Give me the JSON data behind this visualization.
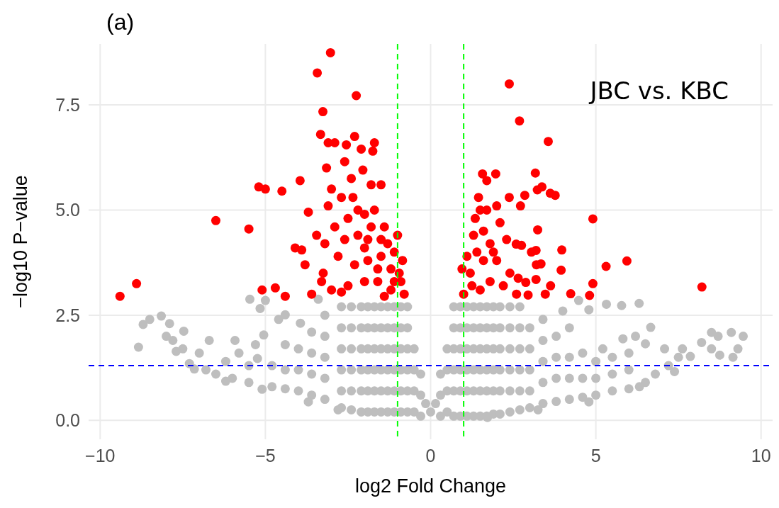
{
  "chart_data": {
    "type": "scatter",
    "title": "(a)",
    "xlabel": "log2 Fold Change",
    "ylabel": "−log10 P−value",
    "annotations": [
      "JBC vs. KBC"
    ],
    "xlim": [
      -10.35,
      10.35
    ],
    "ylim": [
      -0.45,
      8.95
    ],
    "xticks": [
      {
        "value": -10,
        "label": "−10"
      },
      {
        "value": -5,
        "label": "−5"
      },
      0,
      5,
      10
    ],
    "yticks": [
      {
        "value": 0,
        "label": "0.0"
      },
      2.5,
      {
        "value": 5,
        "label": "5.0"
      },
      7.5
    ],
    "grid": true,
    "marker": "circle",
    "ref_lines": [
      {
        "axis": "y",
        "value": 1.3,
        "color": "#0000ff",
        "line_style": "dashed"
      },
      {
        "axis": "x",
        "value": -1,
        "color": "#00ff00",
        "line_style": "dashed"
      },
      {
        "axis": "x",
        "value": 1,
        "color": "#00ff00",
        "line_style": "dashed"
      }
    ],
    "series": [
      {
        "color": "#bebebe",
        "x": [
          -0.5,
          -0.5,
          -0.5,
          -0.5,
          -0.7,
          -0.7,
          -0.7,
          -0.7,
          -0.7,
          -0.7,
          -0.9,
          -0.9,
          -0.9,
          -0.9,
          -0.9,
          -0.9,
          -1.1,
          -1.1,
          -1.1,
          -1.1,
          -1.1,
          -1.1,
          -1.3,
          -1.3,
          -1.3,
          -1.3,
          -1.3,
          -1.3,
          -1.5,
          -1.5,
          -1.5,
          -1.5,
          -1.5,
          -1.5,
          -1.7,
          -1.7,
          -1.7,
          -1.7,
          -1.7,
          -1.7,
          -1.9,
          -1.9,
          -1.9,
          -1.9,
          -1.9,
          -1.9,
          -2.1,
          -2.1,
          -2.1,
          -2.1,
          -2.1,
          -2.1,
          -2.4,
          -2.4,
          -2.4,
          -2.4,
          -2.4,
          -2.4,
          -2.7,
          -2.7,
          -2.7,
          -2.7,
          -2.7,
          -2.7,
          0.5,
          0.5,
          0.5,
          0.5,
          0.7,
          0.7,
          0.7,
          0.7,
          0.7,
          0.7,
          0.9,
          0.9,
          0.9,
          0.9,
          0.9,
          0.9,
          1.1,
          1.1,
          1.1,
          1.1,
          1.1,
          1.1,
          1.3,
          1.3,
          1.3,
          1.3,
          1.3,
          1.3,
          1.5,
          1.5,
          1.5,
          1.5,
          1.5,
          1.5,
          1.7,
          1.7,
          1.7,
          1.7,
          1.7,
          1.7,
          1.9,
          1.9,
          1.9,
          1.9,
          1.9,
          1.9,
          2.1,
          2.1,
          2.1,
          2.1,
          2.1,
          2.1,
          2.4,
          2.4,
          2.4,
          2.4,
          2.4,
          2.4,
          2.7,
          2.7,
          2.7,
          2.7,
          2.7,
          2.7,
          3.0,
          3.0,
          3.0,
          3.0,
          3.0,
          -0.3,
          -0.3,
          -0.3,
          0,
          -0.15,
          0.15,
          0.3,
          0.3,
          0.3,
          -3.2,
          -3.2,
          -3.2,
          -3.2,
          -3.2,
          -3.6,
          -3.6,
          -3.6,
          -3.6,
          -4.0,
          -4.0,
          -4.0,
          -4.4,
          -4.4,
          -4.4,
          -4.8,
          -4.8,
          -5.5,
          -5.5,
          -6.0,
          -6.5,
          -6.8,
          -7.3,
          -7.5,
          -7.8,
          -8.0,
          -7.0,
          -6.2,
          -5.8,
          -5.3,
          -8.5,
          -2.8,
          -3.7,
          -5.1,
          -6.2,
          -7.15,
          -7.7,
          -8.84,
          -8.7,
          -8.15,
          -7.9,
          -7.47,
          -6.7,
          -5.92,
          -5.47,
          -5.16,
          -5.0,
          -4.4,
          -4.6,
          -5.05,
          -5.24,
          -3.94,
          -3.4,
          3.4,
          3.4,
          3.4,
          3.4,
          3.4,
          3.8,
          3.8,
          3.8,
          3.8,
          4.2,
          4.2,
          4.2,
          4.2,
          4.6,
          4.6,
          4.6,
          5.0,
          5.0,
          5.0,
          5.5,
          5.5,
          6.0,
          6.0,
          6.5,
          6.8,
          7.2,
          7.5,
          5.5,
          6.0,
          4.0,
          4.48,
          4.79,
          5.32,
          5.78,
          6.31,
          6.66,
          6.2,
          5.82,
          6.5,
          5.21,
          7.08,
          7.62,
          7.86,
          8.2,
          8.5,
          8.7,
          9.1,
          9.46,
          9.3,
          9.15,
          8.75,
          8.5,
          7.38,
          6.32,
          4.79,
          3.25,
          1.72
        ],
        "values": [
          0.2,
          0.7,
          1.2,
          1.7,
          0.2,
          0.7,
          1.2,
          1.7,
          2.2,
          2.7,
          0.2,
          0.7,
          1.2,
          1.7,
          2.2,
          2.7,
          0.2,
          0.7,
          1.2,
          1.7,
          2.2,
          2.7,
          0.2,
          0.7,
          1.2,
          1.7,
          2.2,
          2.7,
          0.2,
          0.7,
          1.2,
          1.7,
          2.2,
          2.7,
          0.2,
          0.7,
          1.2,
          1.7,
          2.2,
          2.7,
          0.2,
          0.7,
          1.2,
          1.7,
          2.2,
          2.7,
          0.2,
          0.7,
          1.2,
          1.7,
          2.2,
          2.7,
          0.25,
          0.7,
          1.2,
          1.7,
          2.2,
          2.7,
          0.3,
          0.7,
          1.2,
          1.7,
          2.2,
          2.7,
          0.2,
          0.7,
          1.2,
          1.7,
          0.1,
          0.7,
          1.2,
          1.7,
          2.2,
          2.7,
          0.1,
          0.7,
          1.2,
          1.7,
          2.2,
          2.7,
          0.1,
          0.7,
          1.2,
          1.7,
          2.2,
          2.7,
          0.1,
          0.7,
          1.2,
          1.7,
          2.2,
          2.7,
          0.1,
          0.7,
          1.2,
          1.7,
          2.2,
          2.7,
          0.1,
          0.7,
          1.2,
          1.7,
          2.2,
          2.7,
          0.15,
          0.7,
          1.2,
          1.7,
          2.2,
          2.7,
          0.15,
          0.7,
          1.2,
          1.7,
          2.2,
          2.7,
          0.2,
          0.7,
          1.2,
          1.7,
          2.2,
          2.7,
          0.25,
          0.7,
          1.2,
          1.7,
          2.2,
          2.7,
          0.3,
          0.7,
          1.2,
          1.7,
          2.2,
          0.1,
          0.6,
          1.1,
          0.2,
          0.4,
          0.4,
          0.1,
          0.6,
          1.1,
          0.5,
          1.0,
          1.5,
          2.0,
          2.5,
          0.6,
          1.1,
          1.6,
          2.1,
          0.7,
          1.2,
          1.7,
          0.75,
          1.2,
          1.8,
          0.8,
          1.3,
          0.9,
          1.3,
          1.0,
          1.1,
          1.2,
          1.35,
          1.7,
          1.9,
          2.0,
          1.6,
          1.4,
          1.6,
          1.8,
          2.4,
          0.25,
          0.44,
          0.74,
          0.93,
          1.22,
          1.64,
          1.74,
          2.28,
          2.48,
          2.3,
          2.12,
          1.9,
          1.9,
          2.88,
          2.66,
          2.85,
          2.51,
          2.4,
          2.03,
          1.47,
          2.31,
          2.88,
          0.4,
          0.9,
          1.4,
          1.9,
          2.4,
          0.45,
          1.0,
          1.5,
          2.0,
          0.5,
          1.0,
          1.5,
          2.2,
          0.55,
          1.0,
          1.6,
          0.6,
          1.0,
          1.4,
          0.7,
          1.1,
          0.75,
          1.2,
          0.9,
          1.1,
          1.3,
          1.5,
          1.5,
          1.6,
          2.6,
          2.85,
          2.63,
          2.76,
          2.73,
          2.78,
          2.21,
          2.0,
          1.94,
          1.82,
          1.7,
          1.7,
          1.7,
          1.52,
          1.85,
          2.09,
          2.0,
          2.09,
          2.0,
          1.7,
          1.5,
          1.55,
          1.7,
          1.16,
          0.8,
          0.44,
          0.25,
          0.07
        ]
      },
      {
        "color": "#ff0000",
        "x": [
          -9.4,
          -8.9,
          -6.5,
          -5.5,
          -5.2,
          -5.0,
          -4.5,
          -5.1,
          -4.7,
          -4.4,
          -3.95,
          -3.7,
          -3.45,
          -4.1,
          -3.9,
          -3.8,
          -3.3,
          -3.6,
          -3.03,
          -3.43,
          -2.25,
          -3.26,
          -3.33,
          -3.1,
          -2.9,
          -2.55,
          -2.3,
          -2.1,
          -1.7,
          -1.75,
          -3.15,
          -2.6,
          -2.05,
          -2.4,
          -1.8,
          -3.1,
          -3.0,
          -2.7,
          -2.35,
          -1.5,
          -2.5,
          -2.0,
          -1.7,
          -1.4,
          -3.2,
          -2.6,
          -2.2,
          -1.9,
          -1.3,
          -1.1,
          -3.25,
          -2.8,
          -2.3,
          -1.9,
          -1.5,
          -1.2,
          -0.95,
          -3.0,
          -2.5,
          -2.0,
          -1.6,
          -1.2,
          -0.8,
          -2.7,
          -1.4,
          -0.9,
          -0.85,
          -1.0,
          -1.5,
          -1.8,
          -2.2,
          -1.6,
          -2.9,
          -2.0,
          -1.1,
          2.38,
          2.69,
          3.56,
          3.17,
          1.57,
          1.97,
          3.23,
          3.37,
          3.62,
          3.77,
          2.38,
          2.85,
          2.72,
          4.91,
          3.24,
          3.97,
          5.94,
          5.31,
          3.95,
          4.91,
          8.21,
          4.81,
          4.24,
          2.59,
          2.75,
          3.05,
          3.19,
          3.2,
          3.34,
          3.19,
          2.65,
          2.88,
          3.63,
          2.95,
          3.47,
          1.0,
          1.2,
          1.4,
          1.6,
          1.8,
          2.0,
          1.3,
          1.5,
          1.45,
          1.7,
          2.1,
          2.3,
          1.1,
          0.95,
          1.8,
          2.2,
          2.4,
          1.5,
          2.6,
          1.25,
          1.9,
          1.6,
          2.0,
          1.7,
          1.35
        ],
        "values": [
          2.95,
          3.25,
          4.75,
          4.55,
          5.55,
          5.5,
          5.45,
          3.1,
          3.15,
          2.95,
          5.7,
          4.95,
          4.4,
          4.1,
          4.05,
          3.7,
          3.3,
          3.0,
          8.74,
          8.26,
          7.72,
          7.34,
          6.8,
          6.6,
          6.6,
          6.55,
          6.75,
          6.45,
          6.6,
          6.4,
          6.0,
          6.15,
          5.95,
          5.75,
          5.6,
          5.1,
          5.5,
          5.3,
          5.3,
          5.6,
          4.8,
          4.9,
          5.0,
          4.6,
          4.2,
          4.3,
          4.4,
          4.3,
          4.2,
          4.0,
          3.5,
          3.9,
          3.7,
          3.8,
          3.9,
          3.6,
          3.5,
          3.1,
          3.2,
          3.3,
          3.3,
          3.1,
          3.0,
          3.05,
          2.95,
          3.3,
          3.8,
          4.4,
          4.3,
          4.6,
          5.0,
          3.6,
          4.6,
          4.1,
          3.3,
          8.0,
          7.12,
          6.63,
          5.88,
          5.86,
          5.86,
          5.48,
          5.55,
          5.4,
          5.35,
          5.3,
          5.35,
          5.1,
          4.79,
          4.53,
          4.05,
          3.79,
          3.66,
          3.57,
          3.25,
          3.17,
          2.97,
          3.01,
          4.19,
          4.16,
          4.0,
          4.04,
          3.7,
          3.72,
          3.35,
          3.38,
          3.28,
          3.2,
          2.98,
          3.0,
          3.0,
          3.5,
          4.0,
          4.5,
          4.2,
          3.8,
          4.4,
          5.0,
          5.3,
          5.0,
          4.7,
          4.3,
          3.9,
          3.6,
          3.3,
          3.2,
          3.5,
          3.1,
          3.0,
          3.2,
          4.0,
          3.8,
          5.1,
          5.7,
          4.8
        ]
      }
    ]
  }
}
